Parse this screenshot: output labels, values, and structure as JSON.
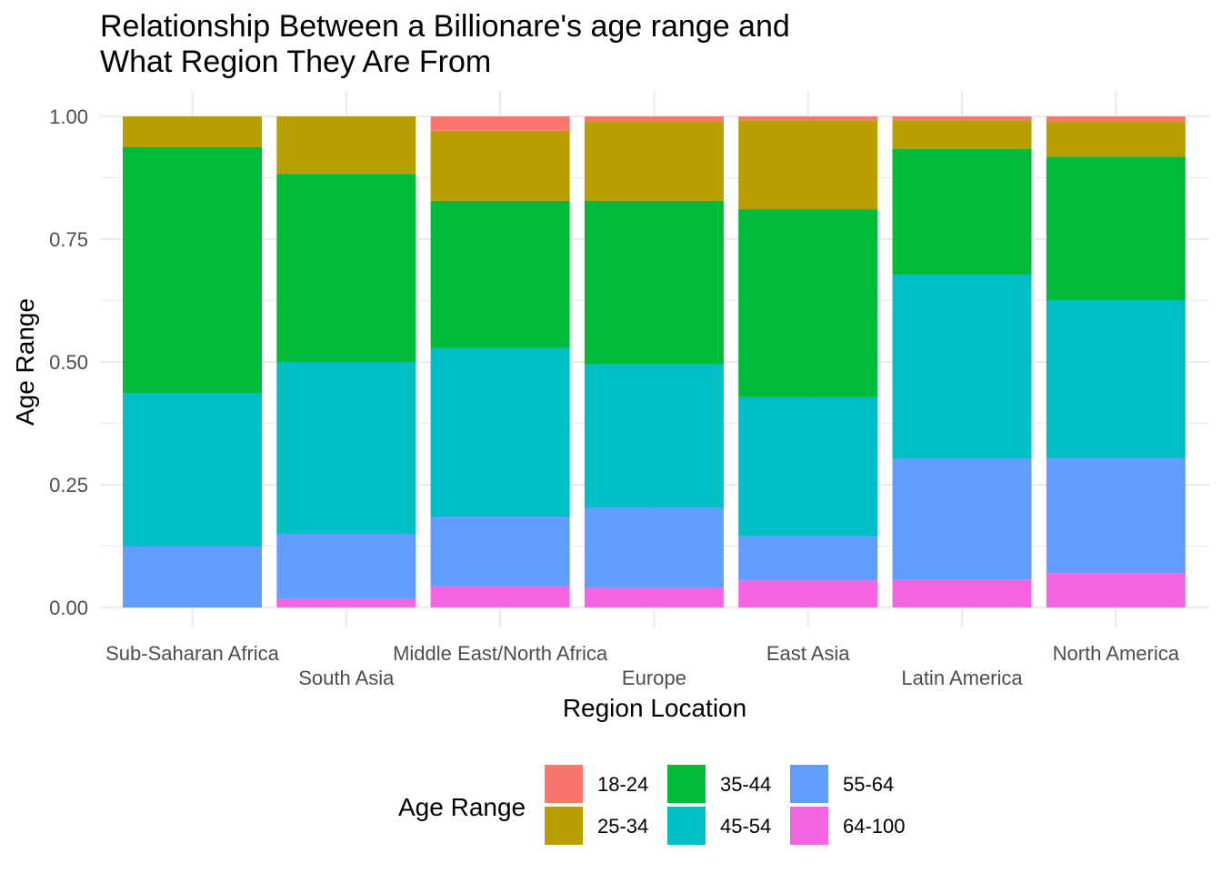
{
  "chart_data": {
    "type": "bar",
    "stacked": "proportional",
    "title": "Relationship Between a Billionare's age range and\nWhat Region They Are From",
    "xlabel": "Region Location",
    "ylabel": "Age Range",
    "ylim": [
      0,
      1
    ],
    "yticks": [
      "0.00",
      "0.25",
      "0.50",
      "0.75",
      "1.00"
    ],
    "grid": true,
    "legend": {
      "title": "Age Range",
      "position": "bottom"
    },
    "categories": [
      "Sub-Saharan Africa",
      "South Asia",
      "Middle East/North Africa",
      "Europe",
      "East Asia",
      "Latin America",
      "North America"
    ],
    "series": [
      {
        "name": "18-24",
        "color": "#F8766D",
        "values": [
          0.0,
          0.0,
          0.029,
          0.01,
          0.008,
          0.008,
          0.01
        ]
      },
      {
        "name": "25-34",
        "color": "#B79F00",
        "values": [
          0.063,
          0.117,
          0.143,
          0.162,
          0.181,
          0.058,
          0.072
        ]
      },
      {
        "name": "35-44",
        "color": "#00BA38",
        "values": [
          0.5,
          0.383,
          0.3,
          0.333,
          0.383,
          0.256,
          0.292
        ]
      },
      {
        "name": "45-54",
        "color": "#00BFC4",
        "values": [
          0.312,
          0.35,
          0.343,
          0.292,
          0.283,
          0.375,
          0.322
        ]
      },
      {
        "name": "55-64",
        "color": "#619CFF",
        "values": [
          0.125,
          0.133,
          0.142,
          0.163,
          0.09,
          0.247,
          0.234
        ]
      },
      {
        "name": "64-100",
        "color": "#F564E3",
        "values": [
          0.0,
          0.017,
          0.043,
          0.04,
          0.055,
          0.056,
          0.07
        ]
      }
    ]
  }
}
